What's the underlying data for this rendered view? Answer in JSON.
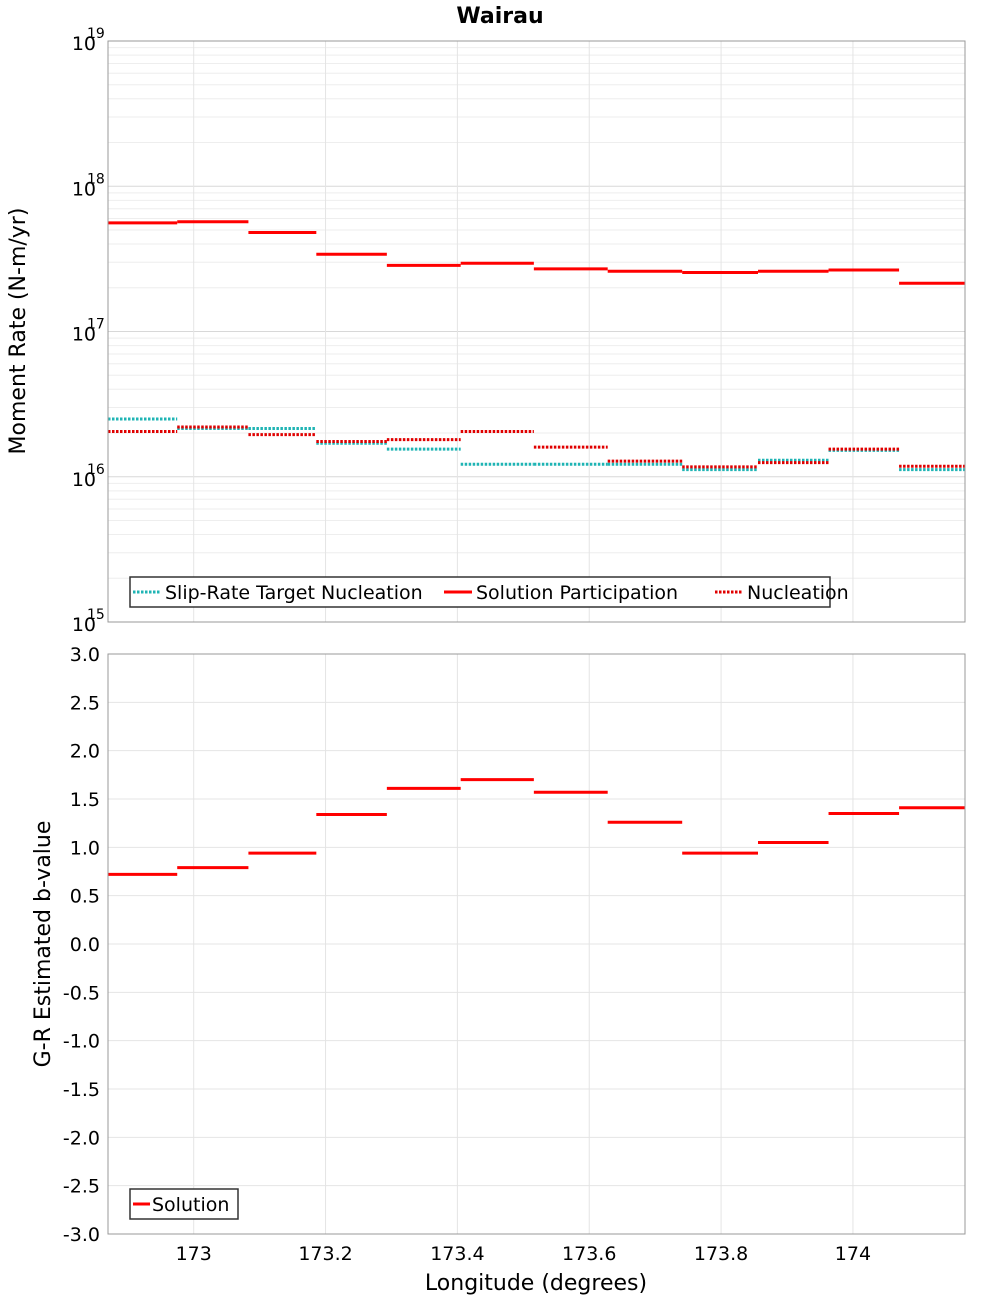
{
  "chart_data": [
    {
      "type": "line",
      "title": "Wairau",
      "ylabel": "Moment Rate (N-m/yr)",
      "yscale": "log",
      "ylim": [
        1000000000000000.0,
        1e+19
      ],
      "yticks": [
        {
          "base": "10",
          "exp": "15"
        },
        {
          "base": "10",
          "exp": "16"
        },
        {
          "base": "10",
          "exp": "17"
        },
        {
          "base": "10",
          "exp": "18"
        },
        {
          "base": "10",
          "exp": "19"
        }
      ],
      "grid": true,
      "legend_position": "bottom-left",
      "series": [
        {
          "name": "Slip-Rate Target Nucleation",
          "color": "#1fb4b4",
          "style": "dotted",
          "steps": [
            {
              "x0": 172.87,
              "x1": 172.975,
              "y": 2.5e+16
            },
            {
              "x0": 172.975,
              "x1": 173.083,
              "y": 2.15e+16
            },
            {
              "x0": 173.083,
              "x1": 173.186,
              "y": 2.15e+16
            },
            {
              "x0": 173.186,
              "x1": 173.293,
              "y": 1.7e+16
            },
            {
              "x0": 173.293,
              "x1": 173.405,
              "y": 1.55e+16
            },
            {
              "x0": 173.405,
              "x1": 173.516,
              "y": 1.22e+16
            },
            {
              "x0": 173.516,
              "x1": 173.628,
              "y": 1.22e+16
            },
            {
              "x0": 173.628,
              "x1": 173.741,
              "y": 1.22e+16
            },
            {
              "x0": 173.741,
              "x1": 173.856,
              "y": 1.12e+16
            },
            {
              "x0": 173.856,
              "x1": 173.963,
              "y": 1.3e+16
            },
            {
              "x0": 173.963,
              "x1": 174.07,
              "y": 1.52e+16
            },
            {
              "x0": 174.07,
              "x1": 174.17,
              "y": 1.12e+16
            }
          ]
        },
        {
          "name": "Solution Participation",
          "color": "#ff0000",
          "style": "solid",
          "steps": [
            {
              "x0": 172.87,
              "x1": 172.975,
              "y": 5.6e+17
            },
            {
              "x0": 172.975,
              "x1": 173.083,
              "y": 5.7e+17
            },
            {
              "x0": 173.083,
              "x1": 173.186,
              "y": 4.8e+17
            },
            {
              "x0": 173.186,
              "x1": 173.293,
              "y": 3.4e+17
            },
            {
              "x0": 173.293,
              "x1": 173.405,
              "y": 2.85e+17
            },
            {
              "x0": 173.405,
              "x1": 173.516,
              "y": 2.95e+17
            },
            {
              "x0": 173.516,
              "x1": 173.628,
              "y": 2.7e+17
            },
            {
              "x0": 173.628,
              "x1": 173.741,
              "y": 2.6e+17
            },
            {
              "x0": 173.741,
              "x1": 173.856,
              "y": 2.55e+17
            },
            {
              "x0": 173.856,
              "x1": 173.963,
              "y": 2.6e+17
            },
            {
              "x0": 173.963,
              "x1": 174.07,
              "y": 2.65e+17
            },
            {
              "x0": 174.07,
              "x1": 174.17,
              "y": 2.15e+17
            }
          ]
        },
        {
          "name": "Nucleation",
          "color": "#e00000",
          "style": "dotted",
          "steps": [
            {
              "x0": 172.87,
              "x1": 172.975,
              "y": 2.05e+16
            },
            {
              "x0": 172.975,
              "x1": 173.083,
              "y": 2.2e+16
            },
            {
              "x0": 173.083,
              "x1": 173.186,
              "y": 1.95e+16
            },
            {
              "x0": 173.186,
              "x1": 173.293,
              "y": 1.75e+16
            },
            {
              "x0": 173.293,
              "x1": 173.405,
              "y": 1.8e+16
            },
            {
              "x0": 173.405,
              "x1": 173.516,
              "y": 2.05e+16
            },
            {
              "x0": 173.516,
              "x1": 173.628,
              "y": 1.6e+16
            },
            {
              "x0": 173.628,
              "x1": 173.741,
              "y": 1.28e+16
            },
            {
              "x0": 173.741,
              "x1": 173.856,
              "y": 1.17e+16
            },
            {
              "x0": 173.856,
              "x1": 173.963,
              "y": 1.25e+16
            },
            {
              "x0": 173.963,
              "x1": 174.07,
              "y": 1.55e+16
            },
            {
              "x0": 174.07,
              "x1": 174.17,
              "y": 1.18e+16
            }
          ]
        }
      ]
    },
    {
      "type": "line",
      "xlabel": "Longitude (degrees)",
      "ylabel": "G-R Estimated b-value",
      "ylim": [
        -3.0,
        3.0
      ],
      "xlim": [
        172.87,
        174.17
      ],
      "yticks": [
        "-3.0",
        "-2.5",
        "-2.0",
        "-1.5",
        "-1.0",
        "-0.5",
        "0.0",
        "0.5",
        "1.0",
        "1.5",
        "2.0",
        "2.5",
        "3.0"
      ],
      "xticks": [
        "173",
        "173.2",
        "173.4",
        "173.6",
        "173.8",
        "174"
      ],
      "grid": true,
      "legend_position": "bottom-left",
      "series": [
        {
          "name": "Solution",
          "color": "#ff0000",
          "style": "solid",
          "steps": [
            {
              "x0": 172.87,
              "x1": 172.975,
              "y": 0.72
            },
            {
              "x0": 172.975,
              "x1": 173.083,
              "y": 0.79
            },
            {
              "x0": 173.083,
              "x1": 173.186,
              "y": 0.94
            },
            {
              "x0": 173.186,
              "x1": 173.293,
              "y": 1.34
            },
            {
              "x0": 173.293,
              "x1": 173.405,
              "y": 1.61
            },
            {
              "x0": 173.405,
              "x1": 173.516,
              "y": 1.7
            },
            {
              "x0": 173.516,
              "x1": 173.628,
              "y": 1.57
            },
            {
              "x0": 173.628,
              "x1": 173.741,
              "y": 1.26
            },
            {
              "x0": 173.741,
              "x1": 173.856,
              "y": 0.94
            },
            {
              "x0": 173.856,
              "x1": 173.963,
              "y": 1.05
            },
            {
              "x0": 173.963,
              "x1": 174.07,
              "y": 1.35
            },
            {
              "x0": 174.07,
              "x1": 174.17,
              "y": 1.41
            }
          ]
        }
      ]
    }
  ]
}
